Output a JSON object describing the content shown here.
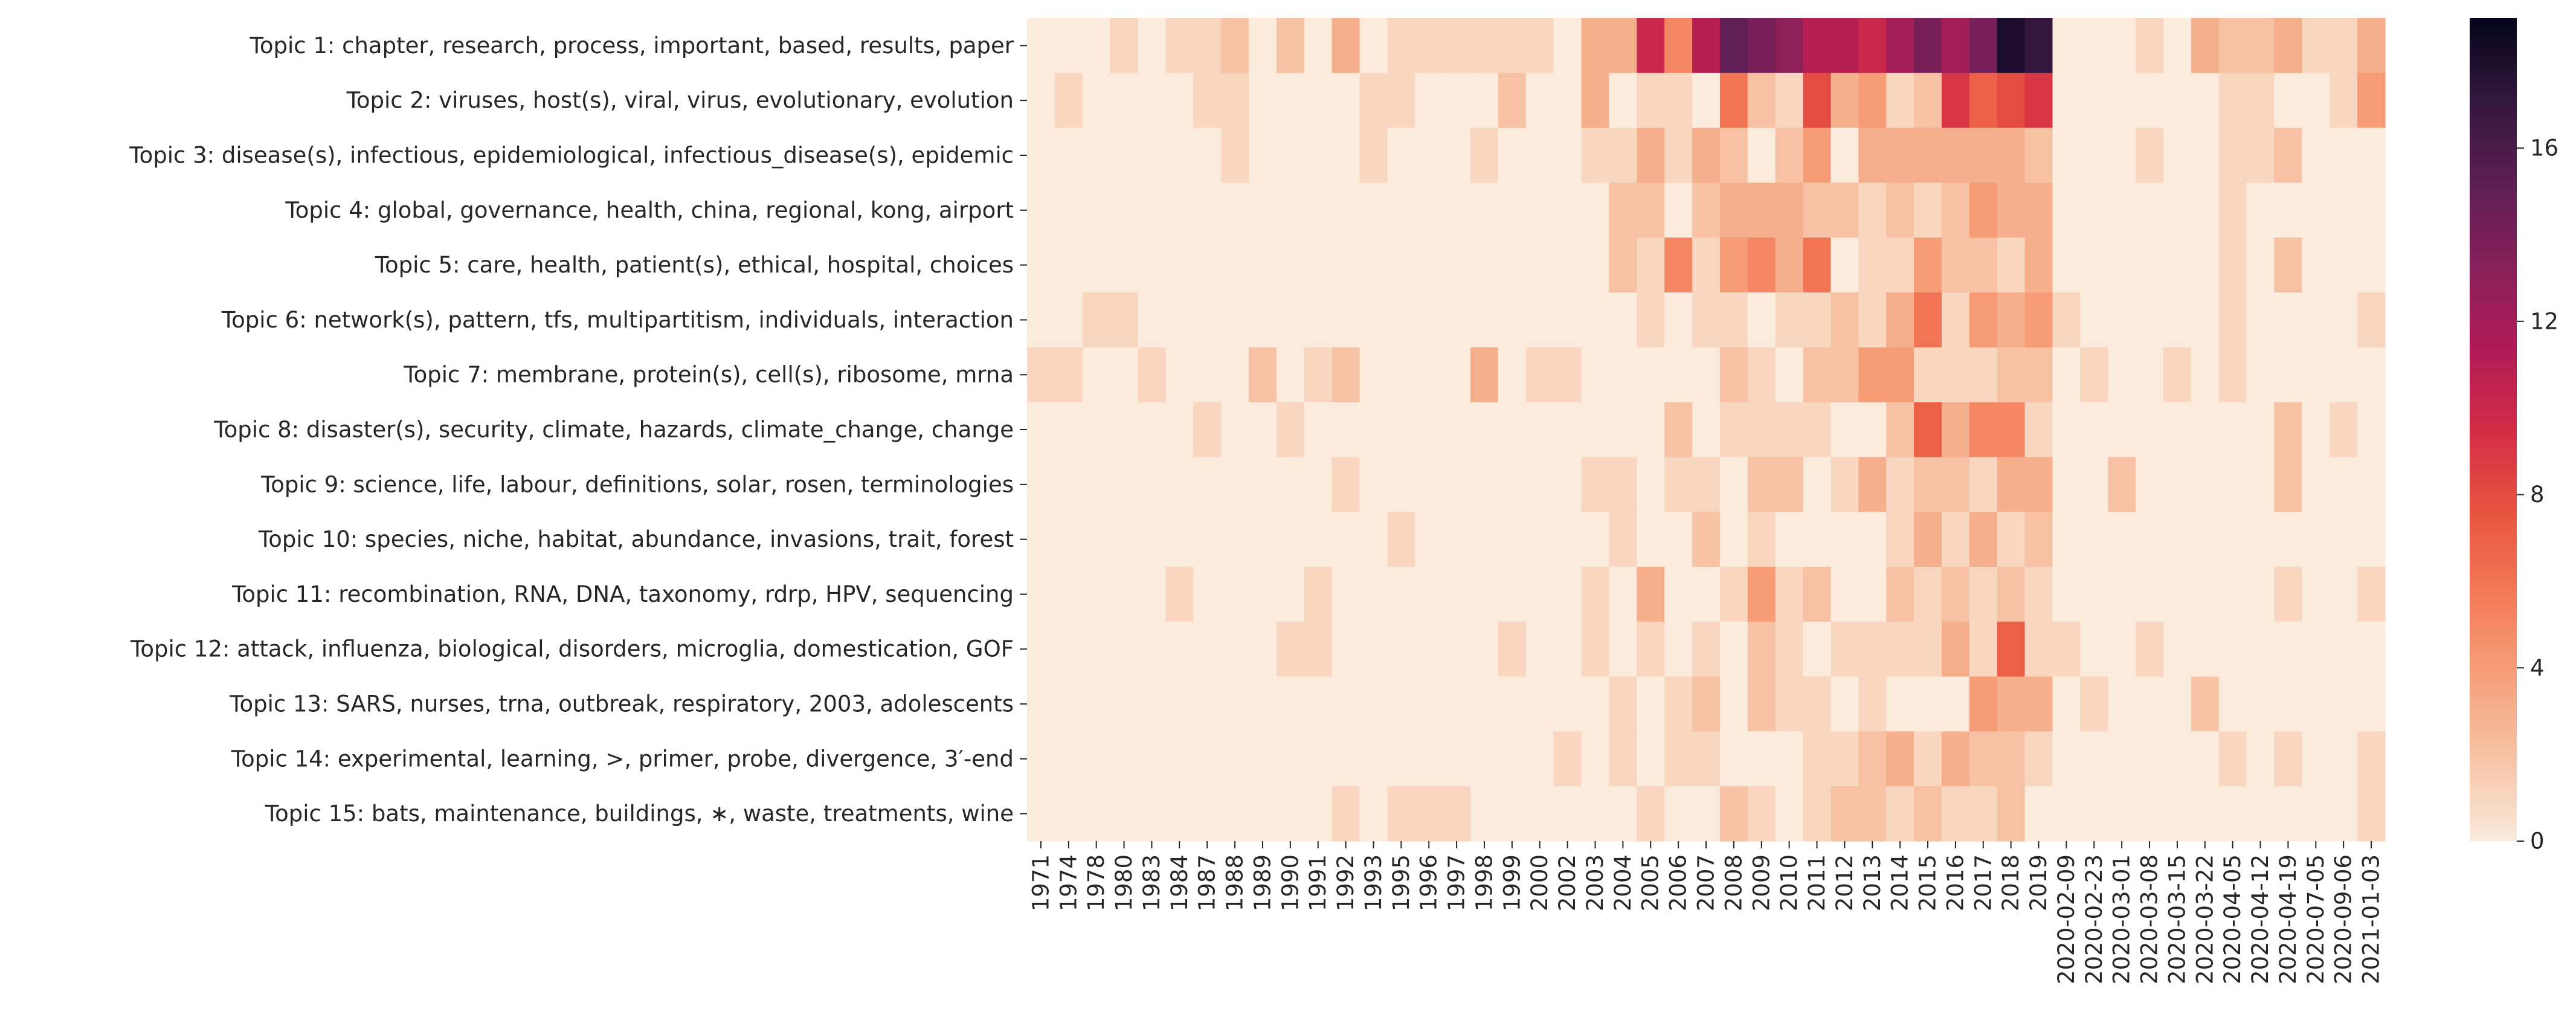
{
  "chart_data": {
    "type": "heatmap",
    "title": "",
    "xlabel": "",
    "ylabel": "",
    "y_categories": [
      "Topic 1: chapter, research, process, important, based, results, paper",
      "Topic 2: viruses, host(s), viral, virus, evolutionary, evolution",
      "Topic 3: disease(s), infectious, epidemiological, infectious_disease(s), epidemic",
      "Topic 4: global, governance, health, china, regional, kong, airport",
      "Topic 5: care, health, patient(s), ethical, hospital, choices",
      "Topic 6: network(s), pattern, tfs, multipartitism, individuals, interaction",
      "Topic 7: membrane, protein(s), cell(s), ribosome, mrna",
      "Topic 8: disaster(s), security, climate, hazards, climate_change, change",
      "Topic 9: science, life, labour, definitions, solar, rosen, terminologies",
      "Topic 10: species, niche, habitat, abundance, invasions, trait, forest",
      "Topic 11: recombination, RNA, DNA, taxonomy, rdrp, HPV, sequencing",
      "Topic 12: attack, influenza, biological, disorders, microglia, domestication, GOF",
      "Topic 13: SARS, nurses, trna, outbreak, respiratory, 2003, adolescents",
      "Topic 14: experimental, learning, >, primer, probe, divergence, 3′-end",
      "Topic 15: bats, maintenance, buildings, ∗, waste, treatments, wine"
    ],
    "x_tick_labels": [
      "1971",
      "1974",
      "1978",
      "1980",
      "1983",
      "1984",
      "1987",
      "1988",
      "1989",
      "1990",
      "1991",
      "1992",
      "1993",
      "1995",
      "1996",
      "1997",
      "1998",
      "1999",
      "2000",
      "2002",
      "2003",
      "2004",
      "2005",
      "2006",
      "2007",
      "2008",
      "2009",
      "2010",
      "2011",
      "2012",
      "2013",
      "2014",
      "2015",
      "2016",
      "2017",
      "2018",
      "2019",
      "2020-02-09",
      "2020-02-23",
      "2020-03-01",
      "2020-03-08",
      "2020-03-15",
      "2020-03-22",
      "2020-04-05",
      "2020-04-12",
      "2020-04-19",
      "2020-07-05",
      "2020-09-06",
      "2021-01-03"
    ],
    "n_columns": 49,
    "tick_every": 1,
    "colorbar": {
      "vmin": 0,
      "vmax": 19,
      "ticks": [
        0,
        4,
        8,
        12,
        16
      ],
      "tick_labels": [
        "0",
        "4",
        "8",
        "12",
        "16"
      ],
      "colormap": "rocket_r"
    },
    "grid": false,
    "values": [
      [
        0,
        0,
        0,
        1,
        0,
        1,
        1,
        2,
        0,
        2,
        0,
        3,
        0,
        1,
        1,
        1,
        1,
        1,
        1,
        0,
        3,
        3,
        10,
        5,
        11,
        15,
        14,
        13,
        11,
        11,
        10,
        12,
        14,
        12,
        14,
        18,
        17,
        0,
        0,
        0,
        1,
        0,
        3,
        2,
        2,
        3,
        1,
        1,
        3
      ],
      [
        0,
        1,
        0,
        0,
        0,
        0,
        1,
        1,
        0,
        0,
        0,
        0,
        1,
        1,
        0,
        0,
        0,
        2,
        0,
        0,
        3,
        0,
        1,
        1,
        0,
        6,
        2,
        1,
        8,
        3,
        4,
        1,
        2,
        9,
        7,
        8,
        9,
        0,
        0,
        0,
        0,
        0,
        0,
        1,
        1,
        0,
        0,
        1,
        4
      ],
      [
        0,
        0,
        0,
        0,
        0,
        0,
        0,
        1,
        0,
        0,
        0,
        0,
        1,
        0,
        0,
        0,
        1,
        0,
        0,
        0,
        1,
        1,
        3,
        1,
        3,
        2,
        0,
        2,
        4,
        0,
        3,
        3,
        3,
        3,
        3,
        3,
        2,
        0,
        0,
        0,
        1,
        0,
        0,
        1,
        1,
        2,
        0,
        0,
        0
      ],
      [
        0,
        0,
        0,
        0,
        0,
        0,
        0,
        0,
        0,
        0,
        0,
        0,
        0,
        0,
        0,
        0,
        0,
        0,
        0,
        0,
        0,
        2,
        2,
        0,
        2,
        3,
        3,
        3,
        2,
        2,
        1,
        2,
        1,
        2,
        4,
        3,
        3,
        0,
        0,
        0,
        0,
        0,
        0,
        1,
        0,
        0,
        0,
        0,
        0
      ],
      [
        0,
        0,
        0,
        0,
        0,
        0,
        0,
        0,
        0,
        0,
        0,
        0,
        0,
        0,
        0,
        0,
        0,
        0,
        0,
        0,
        0,
        2,
        1,
        5,
        1,
        4,
        5,
        3,
        6,
        0,
        1,
        1,
        4,
        2,
        2,
        1,
        3,
        0,
        0,
        0,
        0,
        0,
        0,
        1,
        0,
        2,
        0,
        0,
        0
      ],
      [
        0,
        0,
        1,
        1,
        0,
        0,
        0,
        0,
        0,
        0,
        0,
        0,
        0,
        0,
        0,
        0,
        0,
        0,
        0,
        0,
        0,
        0,
        1,
        0,
        1,
        1,
        0,
        1,
        1,
        2,
        1,
        3,
        6,
        1,
        4,
        3,
        4,
        1,
        0,
        0,
        0,
        0,
        0,
        1,
        0,
        0,
        0,
        0,
        1
      ],
      [
        1,
        1,
        0,
        0,
        1,
        0,
        0,
        0,
        2,
        0,
        1,
        2,
        0,
        0,
        0,
        0,
        3,
        0,
        1,
        1,
        0,
        0,
        0,
        0,
        0,
        2,
        1,
        0,
        2,
        2,
        4,
        4,
        1,
        1,
        1,
        2,
        2,
        0,
        1,
        0,
        0,
        1,
        0,
        1,
        0,
        0,
        0,
        0,
        0
      ],
      [
        0,
        0,
        0,
        0,
        0,
        0,
        1,
        0,
        0,
        1,
        0,
        0,
        0,
        0,
        0,
        0,
        0,
        0,
        0,
        0,
        0,
        0,
        0,
        2,
        0,
        1,
        1,
        1,
        1,
        0,
        0,
        2,
        7,
        3,
        5,
        5,
        1,
        0,
        0,
        0,
        0,
        0,
        0,
        0,
        0,
        2,
        0,
        1,
        0
      ],
      [
        0,
        0,
        0,
        0,
        0,
        0,
        0,
        0,
        0,
        0,
        0,
        1,
        0,
        0,
        0,
        0,
        0,
        0,
        0,
        0,
        1,
        1,
        0,
        1,
        1,
        0,
        2,
        2,
        0,
        1,
        3,
        1,
        2,
        2,
        1,
        3,
        3,
        0,
        0,
        2,
        0,
        0,
        0,
        0,
        0,
        2,
        0,
        0,
        0
      ],
      [
        0,
        0,
        0,
        0,
        0,
        0,
        0,
        0,
        0,
        0,
        0,
        0,
        0,
        1,
        0,
        0,
        0,
        0,
        0,
        0,
        0,
        1,
        0,
        0,
        2,
        0,
        1,
        0,
        0,
        0,
        0,
        1,
        3,
        1,
        3,
        1,
        2,
        0,
        0,
        0,
        0,
        0,
        0,
        0,
        0,
        0,
        0,
        0,
        0
      ],
      [
        0,
        0,
        0,
        0,
        0,
        1,
        0,
        0,
        0,
        0,
        1,
        0,
        0,
        0,
        0,
        0,
        0,
        0,
        0,
        0,
        1,
        0,
        3,
        0,
        0,
        1,
        4,
        1,
        2,
        0,
        0,
        2,
        1,
        2,
        1,
        2,
        1,
        0,
        0,
        0,
        0,
        0,
        0,
        0,
        0,
        1,
        0,
        0,
        1
      ],
      [
        0,
        0,
        0,
        0,
        0,
        0,
        0,
        0,
        0,
        1,
        1,
        0,
        0,
        0,
        0,
        0,
        0,
        1,
        0,
        0,
        1,
        0,
        1,
        0,
        1,
        0,
        2,
        1,
        0,
        1,
        1,
        1,
        1,
        3,
        1,
        7,
        1,
        1,
        0,
        0,
        1,
        0,
        0,
        0,
        0,
        0,
        0,
        0,
        0
      ],
      [
        0,
        0,
        0,
        0,
        0,
        0,
        0,
        0,
        0,
        0,
        0,
        0,
        0,
        0,
        0,
        0,
        0,
        0,
        0,
        0,
        0,
        1,
        0,
        1,
        2,
        0,
        2,
        1,
        1,
        0,
        1,
        0,
        0,
        0,
        4,
        3,
        3,
        0,
        1,
        0,
        0,
        0,
        2,
        0,
        0,
        0,
        0,
        0,
        0
      ],
      [
        0,
        0,
        0,
        0,
        0,
        0,
        0,
        0,
        0,
        0,
        0,
        0,
        0,
        0,
        0,
        0,
        0,
        0,
        0,
        1,
        0,
        1,
        0,
        1,
        1,
        0,
        0,
        0,
        1,
        1,
        2,
        3,
        1,
        3,
        2,
        2,
        1,
        0,
        0,
        0,
        0,
        0,
        0,
        1,
        0,
        1,
        0,
        0,
        1
      ],
      [
        0,
        0,
        0,
        0,
        0,
        0,
        0,
        0,
        0,
        0,
        0,
        1,
        0,
        1,
        1,
        1,
        0,
        0,
        0,
        0,
        0,
        0,
        1,
        0,
        0,
        2,
        1,
        0,
        1,
        2,
        2,
        1,
        2,
        1,
        1,
        2,
        0,
        0,
        0,
        0,
        0,
        0,
        0,
        0,
        0,
        0,
        0,
        0,
        1
      ]
    ]
  }
}
